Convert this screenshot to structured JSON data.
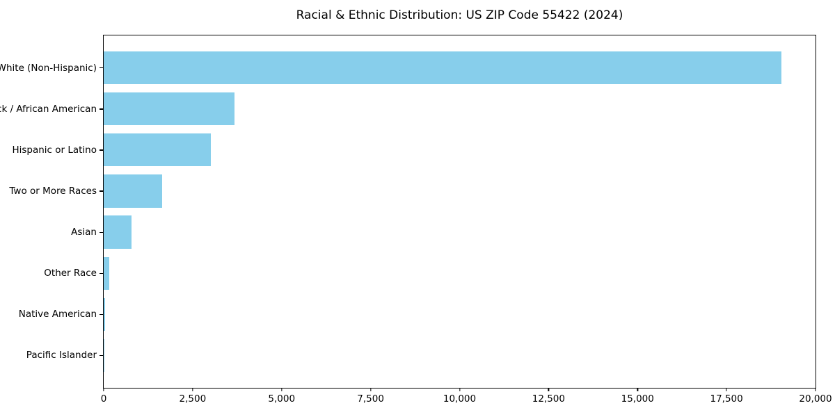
{
  "chart_data": {
    "type": "bar",
    "orientation": "horizontal",
    "title": "Racial & Ethnic Distribution: US ZIP Code 55422 (2024)",
    "categories": [
      "White (Non-Hispanic)",
      "Black / African American",
      "Hispanic or Latino",
      "Two or More Races",
      "Asian",
      "Other Race",
      "Native American",
      "Pacific Islander"
    ],
    "values": [
      19050,
      3670,
      3010,
      1640,
      780,
      155,
      30,
      10
    ],
    "xlabel": "",
    "ylabel": "",
    "xlim": [
      0,
      20000
    ],
    "xticks": [
      0,
      2500,
      5000,
      7500,
      10000,
      12500,
      15000,
      17500,
      20000
    ],
    "xticklabels": [
      "0",
      "2,500",
      "5,000",
      "7,500",
      "10,000",
      "12,500",
      "15,000",
      "17,500",
      "20,000"
    ],
    "grid": false,
    "legend": false,
    "bar_color": "#87CEEB",
    "frame_color": "#000000",
    "background_color": "#ffffff"
  }
}
